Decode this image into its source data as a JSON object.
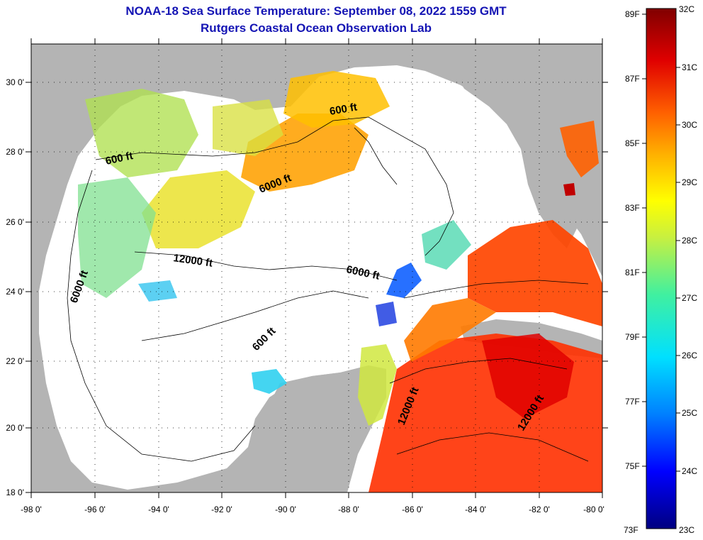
{
  "title": "NOAA-18 Sea Surface Temperature:  September 08, 2022 1559 GMT",
  "subtitle": "Rutgers Coastal Ocean Observation Lab",
  "lon_labels": [
    "-98 0'",
    "-96 0'",
    "-94 0'",
    "-92 0'",
    "-90 0'",
    "-88 0'",
    "-86 0'",
    "-84 0'",
    "-82 0'",
    "-80 0'"
  ],
  "lat_labels": [
    "30 0'",
    "28 0'",
    "26 0'",
    "24 0'",
    "22 0'",
    "20 0'",
    "18 0'"
  ],
  "depth_labels": [
    "600 ft",
    "600 ft",
    "6000 ft",
    "12000 ft",
    "6000 ft",
    "6000 ft",
    "600 ft",
    "12000 ft",
    "12000 ft"
  ],
  "colorbar": {
    "fahrenheit": [
      "89F",
      "87F",
      "85F",
      "83F",
      "81F",
      "79F",
      "77F",
      "75F",
      "73F"
    ],
    "celsius": [
      "32C",
      "31C",
      "30C",
      "29C",
      "28C",
      "27C",
      "26C",
      "25C",
      "24C",
      "23C"
    ]
  },
  "colors": {
    "land": "#b4b4b4",
    "ocean_nodata": "#ffffff",
    "title": "#1414b4"
  }
}
